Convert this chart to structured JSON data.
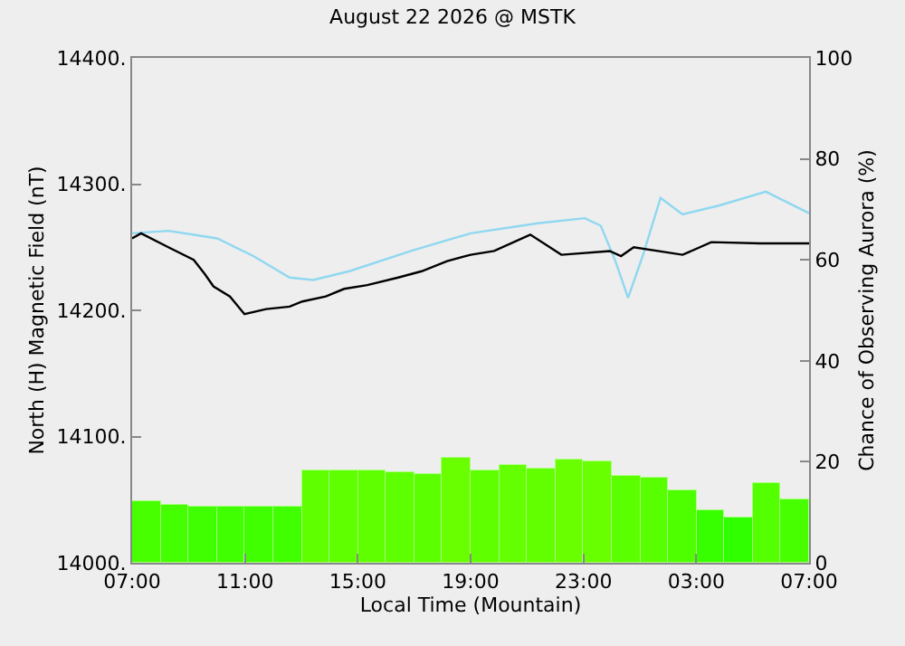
{
  "chart_data": {
    "type": "line",
    "title": "August 22 2026 @ MSTK",
    "xlabel": "Local Time (Mountain)",
    "ylabel": "North (H) Magnetic Field (nT)",
    "y2label": "Chance of Observing Aurora (%)",
    "xlim": [
      "2026-08-22T07:00",
      "2026-08-23T07:00"
    ],
    "xticks": [
      {
        "value": "2026-08-22T07:00",
        "label": "07:00"
      },
      {
        "value": "2026-08-22T11:00",
        "label": "11:00"
      },
      {
        "value": "2026-08-22T15:00",
        "label": "15:00"
      },
      {
        "value": "2026-08-22T19:00",
        "label": "19:00"
      },
      {
        "value": "2026-08-22T23:00",
        "label": "23:00"
      },
      {
        "value": "2026-08-23T03:00",
        "label": "03:00"
      },
      {
        "value": "2026-08-23T07:00",
        "label": "07:00"
      }
    ],
    "ylim": [
      14000,
      14400
    ],
    "yticks": [
      {
        "value": 14000,
        "label": "14000."
      },
      {
        "value": 14100,
        "label": "14100."
      },
      {
        "value": 14200,
        "label": "14200."
      },
      {
        "value": 14300,
        "label": "14300."
      },
      {
        "value": 14400,
        "label": "14400."
      }
    ],
    "y2lim": [
      0,
      100
    ],
    "y2ticks": [
      0,
      20,
      40,
      60,
      80,
      100
    ],
    "grid": false,
    "marker": "none",
    "line_style": "solid",
    "series": [
      {
        "type": "bar",
        "axis": "y2",
        "x": [
          "2026-08-22T07:30",
          "2026-08-22T08:30",
          "2026-08-22T09:30",
          "2026-08-22T10:30",
          "2026-08-22T11:30",
          "2026-08-22T12:30",
          "2026-08-22T13:30",
          "2026-08-22T14:30",
          "2026-08-22T15:30",
          "2026-08-22T16:30",
          "2026-08-22T17:30",
          "2026-08-22T18:30",
          "2026-08-22T19:30",
          "2026-08-22T20:30",
          "2026-08-22T21:30",
          "2026-08-22T22:30",
          "2026-08-22T23:30",
          "2026-08-23T00:30",
          "2026-08-23T01:30",
          "2026-08-23T02:30",
          "2026-08-23T03:30",
          "2026-08-23T04:30",
          "2026-08-23T05:30",
          "2026-08-23T06:30"
        ],
        "values": [
          12.3,
          11.3,
          11.0,
          11.0,
          11.1,
          11.0,
          18.2,
          18.2,
          18.4,
          17.8,
          17.5,
          20.7,
          18.2,
          19.2,
          18.8,
          20.6,
          20.0,
          17.1,
          16.8,
          14.3,
          10.3,
          8.8,
          15.6,
          12.7
        ],
        "colors": [
          "#48ff00",
          "#44ff00",
          "#40ff00",
          "#40ff00",
          "#40ff00",
          "#40ff00",
          "#60ff00",
          "#60ff00",
          "#60ff00",
          "#5eff00",
          "#5cff00",
          "#6aff00",
          "#60ff00",
          "#64ff00",
          "#62ff00",
          "#6aff00",
          "#68ff00",
          "#5aff00",
          "#58ff00",
          "#4eff00",
          "#38ff00",
          "#30ff00",
          "#54ff00",
          "#48ff00"
        ]
      },
      {
        "color": "#8fd8f0",
        "x": [
          "2026-08-22T07:00",
          "2026-08-22T08:17",
          "2026-08-22T10:01",
          "2026-08-22T11:18",
          "2026-08-22T12:35",
          "2026-08-22T13:25",
          "2026-08-22T14:42",
          "2026-08-22T16:53",
          "2026-08-22T19:00",
          "2026-08-22T21:23",
          "2026-08-22T23:03",
          "2026-08-22T23:37",
          "2026-08-23T00:08",
          "2026-08-23T00:35",
          "2026-08-23T01:06",
          "2026-08-23T01:44",
          "2026-08-23T02:31",
          "2026-08-23T03:48",
          "2026-08-23T05:28",
          "2026-08-23T07:00"
        ],
        "values": [
          14261,
          14263,
          14257,
          14243,
          14226,
          14224,
          14231,
          14247,
          14261,
          14269,
          14273,
          14267,
          14239,
          14210,
          14243,
          14289,
          14276,
          14283,
          14294,
          14277
        ]
      },
      {
        "color": "#000000",
        "x": [
          "2026-08-22T07:00",
          "2026-08-22T07:19",
          "2026-08-22T08:17",
          "2026-08-22T09:11",
          "2026-08-22T09:34",
          "2026-08-22T09:53",
          "2026-08-22T10:28",
          "2026-08-22T10:59",
          "2026-08-22T11:45",
          "2026-08-22T12:35",
          "2026-08-22T13:02",
          "2026-08-22T13:52",
          "2026-08-22T14:31",
          "2026-08-22T15:20",
          "2026-08-22T16:26",
          "2026-08-22T17:16",
          "2026-08-22T18:10",
          "2026-08-22T19:00",
          "2026-08-22T19:50",
          "2026-08-22T21:07",
          "2026-08-22T22:13",
          "2026-08-22T23:56",
          "2026-08-23T00:20",
          "2026-08-23T00:47",
          "2026-08-23T02:31",
          "2026-08-23T03:32",
          "2026-08-23T05:16",
          "2026-08-23T07:00"
        ],
        "values": [
          14257,
          14261,
          14250,
          14240,
          14229,
          14219,
          14211,
          14197,
          14201,
          14203,
          14207,
          14211,
          14217,
          14220,
          14226,
          14231,
          14239,
          14244,
          14247,
          14260,
          14244,
          14247,
          14243,
          14250,
          14244,
          14254,
          14253,
          14253
        ]
      }
    ]
  }
}
